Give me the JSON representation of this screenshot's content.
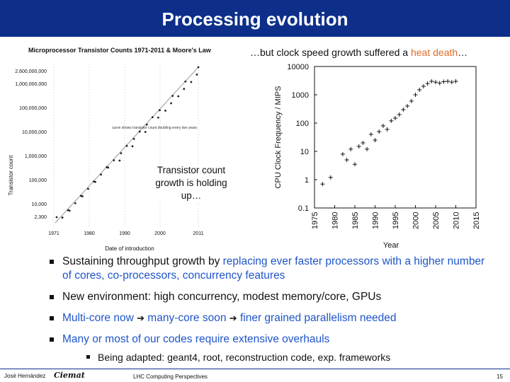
{
  "title": "Processing evolution",
  "left_chart": {
    "title": "Microprocessor Transistor Counts 1971-2011 & Moore's Law",
    "ylabel": "Transistor count",
    "xlabel": "Date of introduction",
    "y_ticks": [
      "2,600,000,000",
      "1,000,000,000",
      "100,000,000",
      "10,000,000",
      "1,000,000",
      "100,000",
      "10,000",
      "2,300"
    ],
    "x_ticks": [
      "1971",
      "1980",
      "1990",
      "2000",
      "2011"
    ],
    "trend_note": "curve shows transistor count doubling every two years",
    "overlay_text": "Transistor count growth is holding up…"
  },
  "chart_data": {
    "type": "scatter",
    "title": "",
    "xlabel": "Year",
    "ylabel": "CPU Clock Frequency / MIPS",
    "x_ticks": [
      "1975",
      "1980",
      "1985",
      "1990",
      "1995",
      "2000",
      "2005",
      "2010",
      "2015"
    ],
    "y_ticks": [
      "10000",
      "1000",
      "100",
      "10",
      "1",
      "0.1"
    ],
    "xlim": [
      1975,
      2015
    ],
    "ylim": [
      0.1,
      10000
    ],
    "yscale": "log",
    "series": [
      {
        "points": [
          [
            1977,
            0.7
          ],
          [
            1979,
            1.2
          ],
          [
            1982,
            8
          ],
          [
            1983,
            5
          ],
          [
            1984,
            12
          ],
          [
            1985,
            3.5
          ],
          [
            1986,
            15
          ],
          [
            1987,
            20
          ],
          [
            1988,
            12
          ],
          [
            1989,
            40
          ],
          [
            1990,
            25
          ],
          [
            1991,
            50
          ],
          [
            1992,
            80
          ],
          [
            1993,
            60
          ],
          [
            1994,
            120
          ],
          [
            1995,
            150
          ],
          [
            1996,
            200
          ],
          [
            1997,
            300
          ],
          [
            1998,
            400
          ],
          [
            1999,
            600
          ],
          [
            2000,
            1000
          ],
          [
            2001,
            1500
          ],
          [
            2002,
            2000
          ],
          [
            2003,
            2500
          ],
          [
            2004,
            3000
          ],
          [
            2005,
            2800
          ],
          [
            2006,
            2600
          ],
          [
            2007,
            2900
          ],
          [
            2008,
            3000
          ],
          [
            2009,
            2800
          ],
          [
            2010,
            3000
          ]
        ]
      }
    ],
    "caption_prefix": "…but clock speed growth suffered a ",
    "caption_highlight": "heat death",
    "caption_suffix": "…"
  },
  "bullets": [
    {
      "parts": [
        {
          "text": "Sustaining throughput growth by ",
          "style": "plain"
        },
        {
          "text": "replacing ever faster processors with a higher number of cores, co-processors, concurrency features",
          "style": "hl"
        }
      ]
    },
    {
      "parts": [
        {
          "text": "New environment: high concurrency, modest memory/core, GPUs",
          "style": "plain"
        }
      ]
    },
    {
      "parts": [
        {
          "text": "Multi-core now ",
          "style": "hl"
        },
        {
          "text": "➔",
          "style": "arrow"
        },
        {
          "text": " many-core soon ",
          "style": "hl"
        },
        {
          "text": "➔",
          "style": "arrow"
        },
        {
          "text": " finer grained parallelism needed",
          "style": "hl"
        }
      ]
    },
    {
      "parts": [
        {
          "text": "Many or most of our codes require extensive overhauls",
          "style": "hl"
        }
      ]
    }
  ],
  "sub_bullet": "Being adapted: geant4, root, reconstruction code, exp. frameworks",
  "footer": {
    "author": "José Hernández",
    "logo": "Ciemat",
    "center": "LHC Computing Perspectives",
    "page": "15"
  },
  "colors": {
    "title_bar": "#0d2f8a",
    "highlight": "#1f55c9",
    "heat_accent": "#e06b2a"
  }
}
